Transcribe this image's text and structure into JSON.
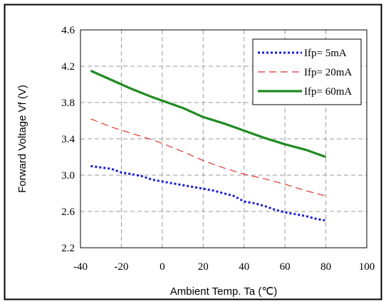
{
  "chart_data": {
    "type": "line",
    "title": "",
    "xlabel": "Ambient Temp. Ta (℃)",
    "ylabel": "Forward Voltage Vf (V)",
    "xlim": [
      -40,
      100
    ],
    "ylim": [
      2.2,
      4.6
    ],
    "x_ticks": [
      -40,
      -20,
      0,
      20,
      40,
      60,
      80,
      100
    ],
    "y_ticks": [
      2.2,
      2.6,
      3.0,
      3.4,
      3.8,
      4.2,
      4.6
    ],
    "x_tick_labels": [
      "-40",
      "-20",
      "0",
      "20",
      "40",
      "60",
      "80",
      "100"
    ],
    "y_tick_labels": [
      "2.2",
      "2.6",
      "3.0",
      "3.4",
      "3.8",
      "4.2",
      "4.6"
    ],
    "grid": true,
    "legend_position": "top-right",
    "series": [
      {
        "name": "Ifp= 5mA",
        "color": "#1a1adc",
        "style": "dotted",
        "x": [
          -35,
          -25,
          -20,
          -15,
          -10,
          -5,
          0,
          5,
          10,
          15,
          20,
          25,
          30,
          35,
          40,
          45,
          50,
          55,
          60,
          65,
          70,
          75,
          80
        ],
        "y": [
          3.1,
          3.07,
          3.03,
          3.01,
          2.99,
          2.95,
          2.93,
          2.91,
          2.89,
          2.87,
          2.85,
          2.83,
          2.8,
          2.77,
          2.71,
          2.69,
          2.66,
          2.62,
          2.59,
          2.57,
          2.55,
          2.52,
          2.5
        ]
      },
      {
        "name": "Ifp= 20mA",
        "color": "#e03030",
        "style": "dashed",
        "x": [
          -35,
          -25,
          -15,
          -5,
          0,
          10,
          20,
          30,
          40,
          50,
          60,
          70,
          80
        ],
        "y": [
          3.62,
          3.53,
          3.46,
          3.39,
          3.35,
          3.26,
          3.16,
          3.08,
          3.01,
          2.96,
          2.9,
          2.83,
          2.77
        ]
      },
      {
        "name": "Ifp= 60mA",
        "color": "#1f8a1f",
        "style": "solid",
        "x": [
          -35,
          -25,
          -15,
          -5,
          0,
          10,
          20,
          30,
          40,
          50,
          60,
          70,
          80
        ],
        "y": [
          4.15,
          4.05,
          3.95,
          3.86,
          3.82,
          3.74,
          3.64,
          3.57,
          3.49,
          3.41,
          3.34,
          3.28,
          3.2
        ]
      }
    ]
  }
}
